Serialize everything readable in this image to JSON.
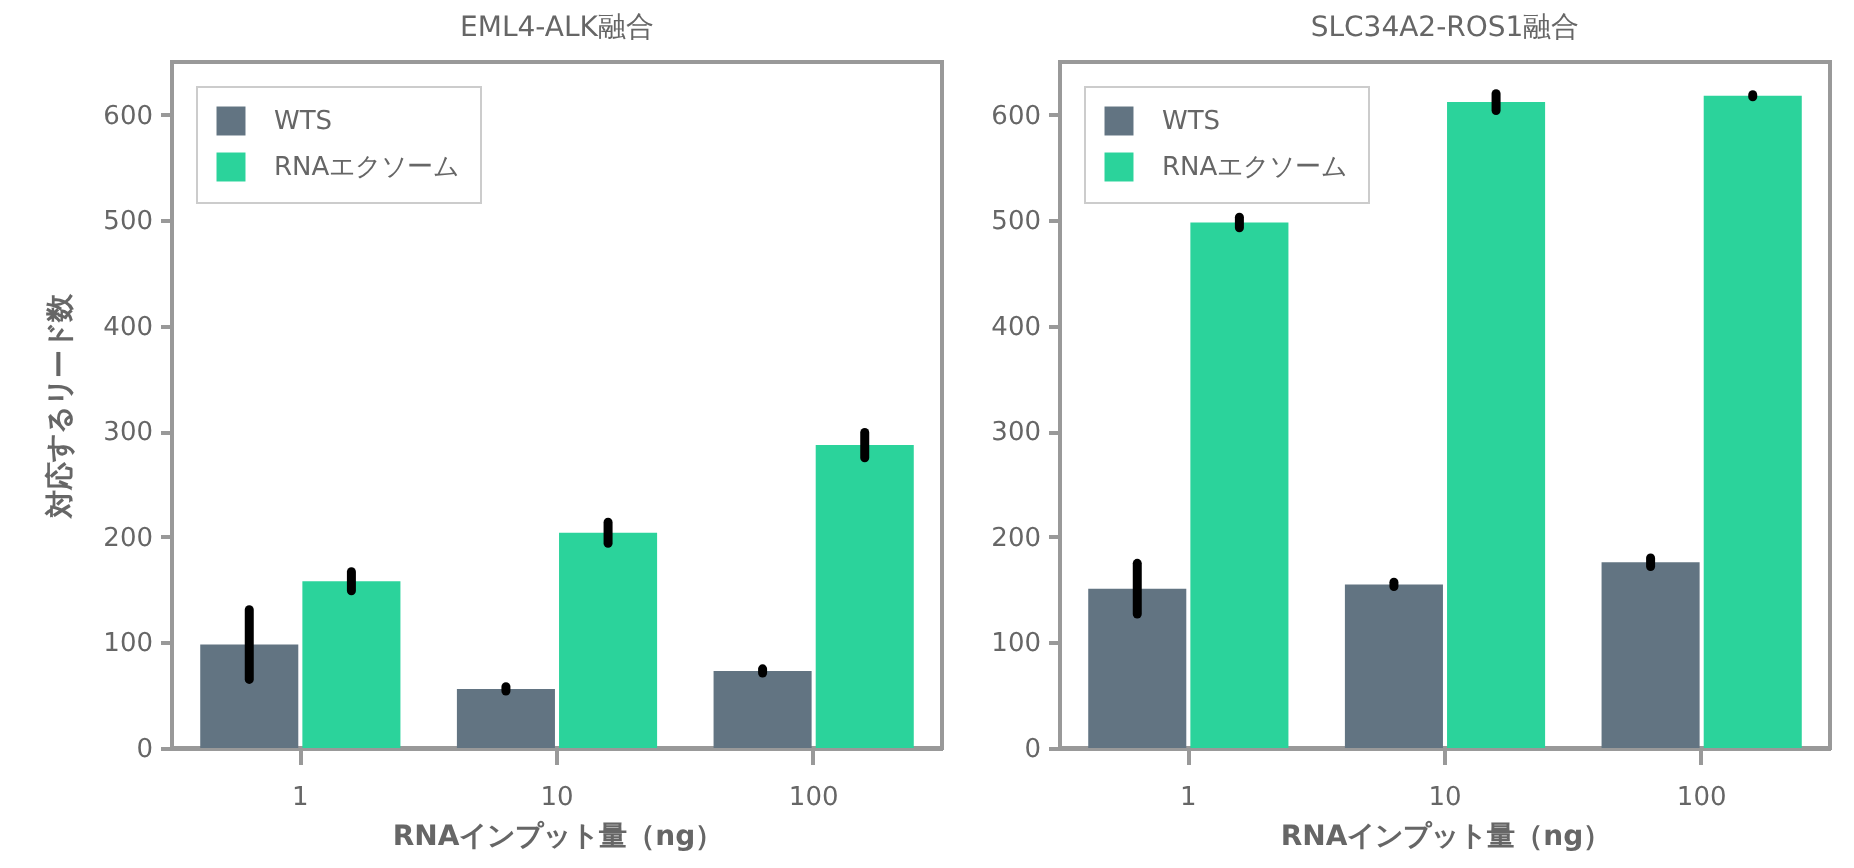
{
  "chart_data": [
    {
      "type": "bar",
      "title": "EML4-ALK融合",
      "xlabel": "RNAインプット量（ng）",
      "ylabel": "対応するリード数",
      "categories": [
        "1",
        "10",
        "100"
      ],
      "series": [
        {
          "name": "WTS",
          "color": "#627482",
          "values": [
            98,
            56,
            73
          ],
          "errors": [
            33,
            2,
            2
          ]
        },
        {
          "name": "RNAエクソーム",
          "color": "#2bd39b",
          "values": [
            158,
            204,
            287
          ],
          "errors": [
            9,
            10,
            12
          ]
        }
      ],
      "ylim": [
        0,
        650
      ],
      "yticks": [
        0,
        100,
        200,
        300,
        400,
        500,
        600
      ],
      "legend": "top left"
    },
    {
      "type": "bar",
      "title": "SLC34A2-ROS1融合",
      "xlabel": "RNAインプット量（ng）",
      "categories": [
        "1",
        "10",
        "100"
      ],
      "series": [
        {
          "name": "WTS",
          "color": "#627482",
          "values": [
            151,
            155,
            176
          ],
          "errors": [
            24,
            2,
            4
          ]
        },
        {
          "name": "RNAエクソーム",
          "color": "#2bd39b",
          "values": [
            498,
            612,
            618
          ],
          "errors": [
            5,
            8,
            1
          ]
        }
      ],
      "ylim": [
        0,
        650
      ],
      "yticks": [
        0,
        100,
        200,
        300,
        400,
        500,
        600
      ],
      "legend": "top left"
    }
  ]
}
